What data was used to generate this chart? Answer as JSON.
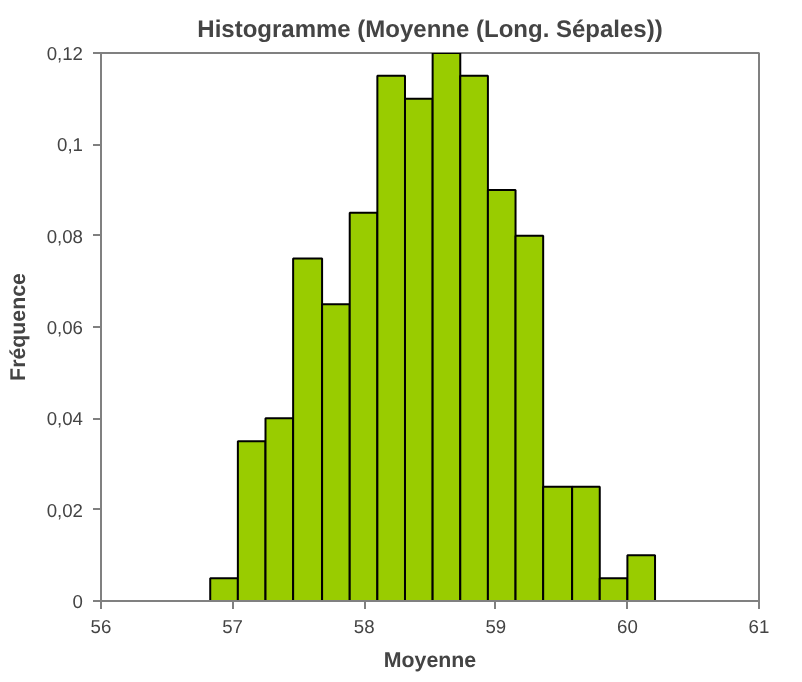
{
  "chart_data": {
    "type": "histogram",
    "title": "Histogramme (Moyenne (Long. Sépales))",
    "xlabel": "Moyenne",
    "ylabel": "Fréquence",
    "bins": [
      56.83,
      57.04,
      57.25,
      57.46,
      57.68,
      57.89,
      58.1,
      58.31,
      58.52,
      58.73,
      58.94,
      59.15,
      59.36,
      59.58,
      59.79,
      60.0,
      60.21
    ],
    "values": [
      0.005,
      0.035,
      0.04,
      0.075,
      0.065,
      0.085,
      0.115,
      0.11,
      0.12,
      0.115,
      0.09,
      0.08,
      0.025,
      0.025,
      0.005,
      0.01
    ],
    "color": "#99cc00",
    "xlim": [
      56,
      61
    ],
    "xticks": [
      56,
      57,
      58,
      59,
      60,
      61
    ],
    "ylim": [
      0,
      0.12
    ],
    "yticks": [
      0,
      {
        "value": 0.02,
        "label": "0,02"
      },
      {
        "value": 0.04,
        "label": "0,04"
      },
      {
        "value": 0.06,
        "label": "0,06"
      },
      {
        "value": 0.08,
        "label": "0,08"
      },
      {
        "value": 0.1,
        "label": "0,1"
      },
      {
        "value": 0.12,
        "label": "0,12"
      }
    ],
    "grid": false
  }
}
